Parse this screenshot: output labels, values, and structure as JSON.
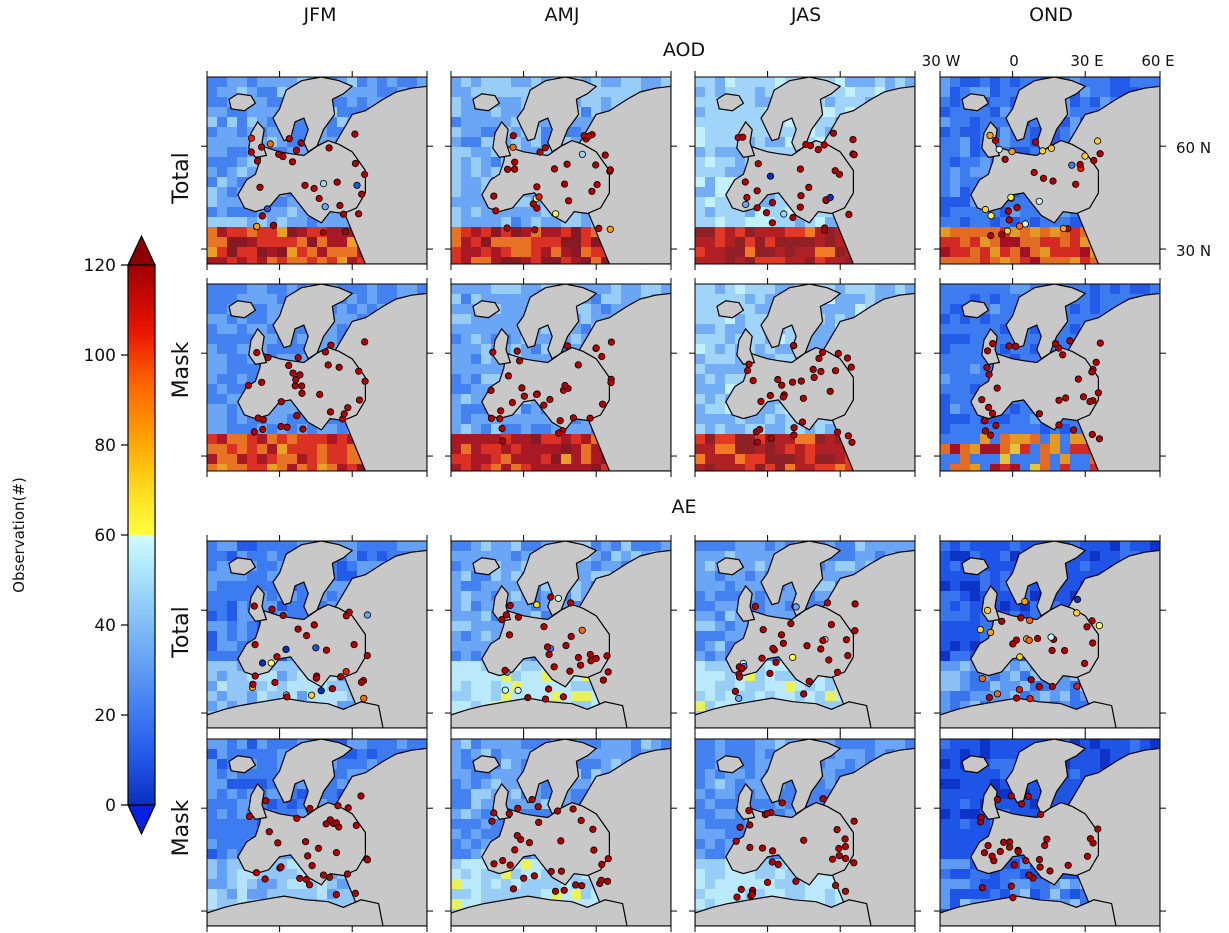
{
  "colors": {
    "land": "#c8c8c8",
    "coast": "#000000",
    "colormap": [
      "#0a2fbf",
      "#1f55e6",
      "#3d7bf0",
      "#6aa6f5",
      "#a0d4f8",
      "#c8f4fb",
      "#ffff40",
      "#ffd21a",
      "#ffa000",
      "#ff6a00",
      "#ee1c00",
      "#b40000",
      "#8c0000"
    ]
  },
  "chart_data": {
    "type": "heatmap",
    "title": "",
    "colorbar": {
      "label": "Observation(#)",
      "ticks": [
        0,
        20,
        40,
        60,
        80,
        100,
        120
      ],
      "range": [
        0,
        120
      ],
      "extend": "both"
    },
    "columns": [
      "JFM",
      "AMJ",
      "JAS",
      "OND"
    ],
    "groups": [
      {
        "name": "AOD",
        "rows": [
          "Total",
          "Mask"
        ]
      },
      {
        "name": "AE",
        "rows": [
          "Total",
          "Mask"
        ]
      }
    ],
    "lon_ticks": [
      "30 W",
      "0",
      "30 E",
      "60 E"
    ],
    "lat_ticks": [
      "60 N",
      "30 N"
    ],
    "map_extent": {
      "lon": [
        -30,
        60
      ],
      "lat": [
        25,
        75
      ]
    },
    "panel_levels": {
      "AOD_Total": [
        30,
        35,
        40,
        22
      ],
      "AOD_Mask": [
        28,
        33,
        38,
        20
      ],
      "AE_Total": [
        25,
        32,
        30,
        15
      ],
      "AE_Mask": [
        24,
        30,
        28,
        12
      ]
    }
  }
}
